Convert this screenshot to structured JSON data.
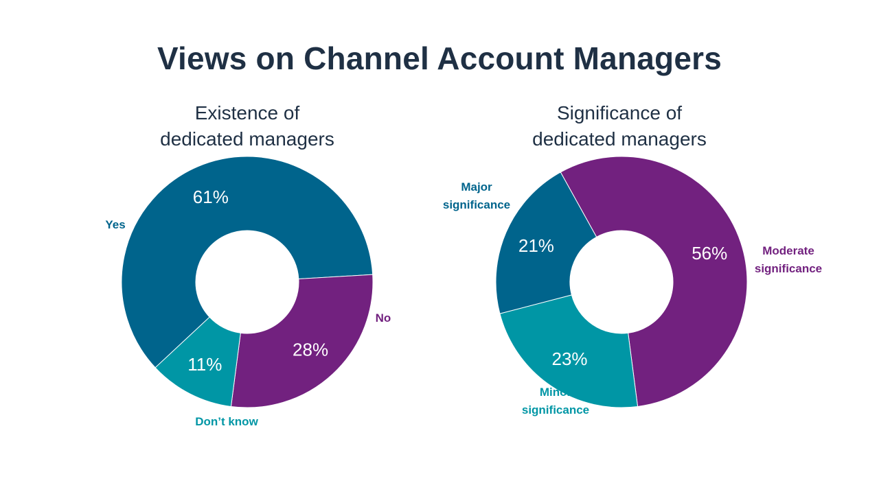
{
  "title": "Views on Channel Account Managers",
  "colors": {
    "title": "#1f3044",
    "blue": "#00648c",
    "purple": "#72217f",
    "teal": "#0096a5",
    "value_label": "#ffffff"
  },
  "chart_data": [
    {
      "type": "pie",
      "title_lines": [
        "Existence of",
        "dedicated managers"
      ],
      "slices": [
        {
          "label_lines": [
            "Yes"
          ],
          "value": 61,
          "value_label": "61%",
          "color": "#00648c"
        },
        {
          "label_lines": [
            "No"
          ],
          "value": 28,
          "value_label": "28%",
          "color": "#72217f"
        },
        {
          "label_lines": [
            "Don’t know"
          ],
          "value": 11,
          "value_label": "11%",
          "color": "#0096a5"
        }
      ]
    },
    {
      "type": "pie",
      "title_lines": [
        "Significance of",
        "dedicated managers"
      ],
      "slices": [
        {
          "label_lines": [
            "Moderate",
            "significance"
          ],
          "value": 56,
          "value_label": "56%",
          "color": "#72217f"
        },
        {
          "label_lines": [
            "Minor",
            "significance"
          ],
          "value": 23,
          "value_label": "23%",
          "color": "#0096a5"
        },
        {
          "label_lines": [
            "Major",
            "significance"
          ],
          "value": 21,
          "value_label": "21%",
          "color": "#00648c"
        }
      ]
    }
  ]
}
